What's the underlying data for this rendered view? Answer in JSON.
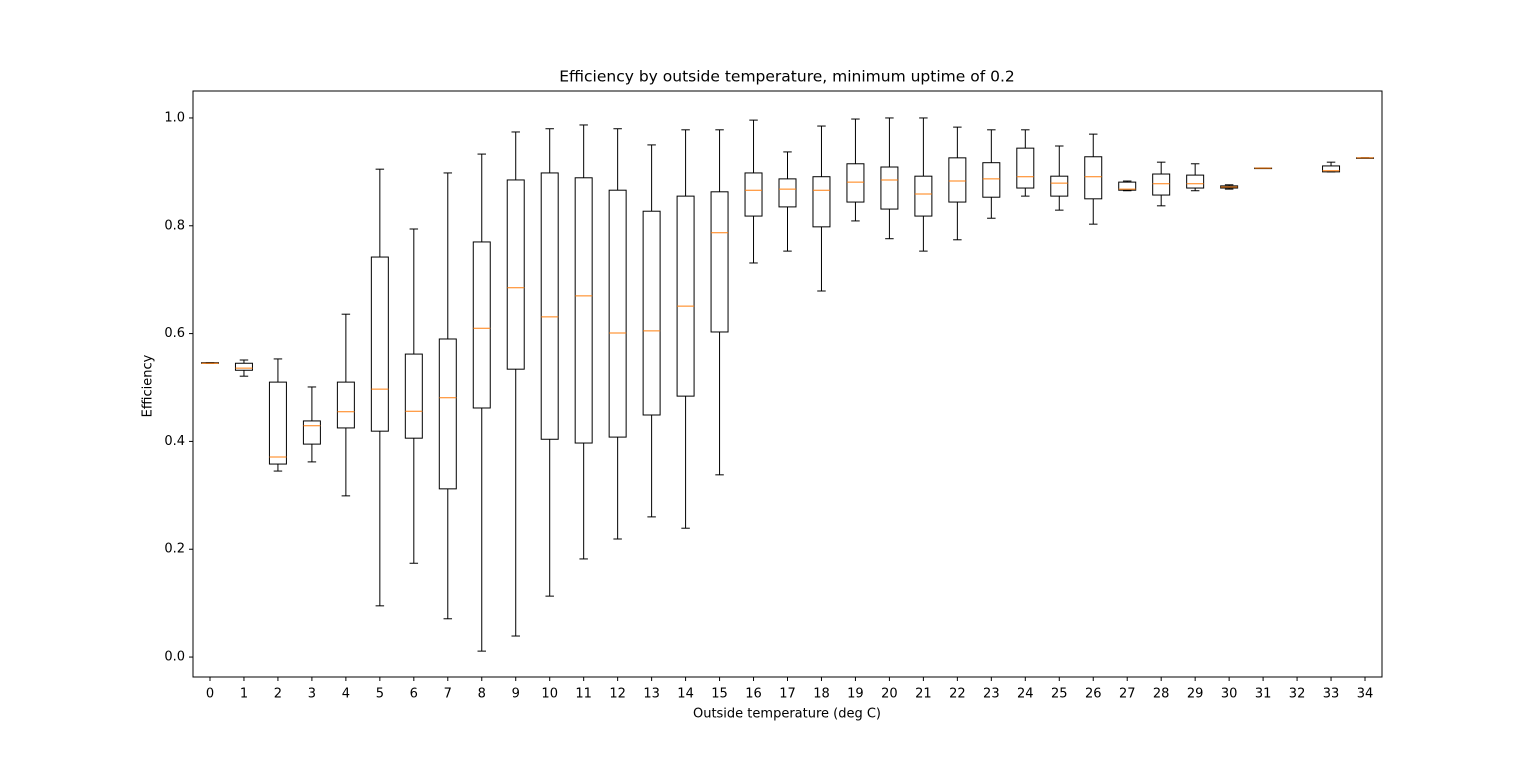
{
  "chart_data": {
    "type": "box",
    "title": "Efficiency by outside temperature, minimum uptime of 0.2",
    "x_label": "Outside temperature (deg C)",
    "y_label": "Efficiency",
    "categories": [
      "0",
      "1",
      "2",
      "3",
      "4",
      "5",
      "6",
      "7",
      "8",
      "9",
      "10",
      "11",
      "12",
      "13",
      "14",
      "15",
      "16",
      "17",
      "18",
      "19",
      "20",
      "21",
      "22",
      "23",
      "24",
      "25",
      "26",
      "27",
      "28",
      "29",
      "30",
      "31",
      "32",
      "33",
      "34"
    ],
    "whislo": [
      0.545,
      0.521,
      0.345,
      0.362,
      0.299,
      0.095,
      0.174,
      0.071,
      0.011,
      0.039,
      0.113,
      0.182,
      0.219,
      0.26,
      0.239,
      0.338,
      0.731,
      0.753,
      0.679,
      0.809,
      0.776,
      0.753,
      0.774,
      0.814,
      0.855,
      0.829,
      0.803,
      0.865,
      0.837,
      0.865,
      0.868,
      0.907,
      null,
      0.9,
      0.926
    ],
    "q1": [
      0.545,
      0.532,
      0.358,
      0.395,
      0.425,
      0.419,
      0.406,
      0.312,
      0.462,
      0.534,
      0.404,
      0.397,
      0.408,
      0.449,
      0.484,
      0.603,
      0.818,
      0.835,
      0.798,
      0.844,
      0.831,
      0.818,
      0.844,
      0.853,
      0.87,
      0.855,
      0.85,
      0.866,
      0.857,
      0.87,
      0.87,
      0.907,
      null,
      0.9,
      0.926
    ],
    "median": [
      0.545,
      0.536,
      0.371,
      0.429,
      0.455,
      0.497,
      0.456,
      0.481,
      0.61,
      0.685,
      0.631,
      0.67,
      0.601,
      0.605,
      0.651,
      0.787,
      0.866,
      0.868,
      0.866,
      0.881,
      0.885,
      0.859,
      0.883,
      0.887,
      0.891,
      0.879,
      0.891,
      0.868,
      0.878,
      0.878,
      0.872,
      0.907,
      null,
      0.902,
      0.926
    ],
    "q3": [
      0.546,
      0.545,
      0.51,
      0.438,
      0.51,
      0.742,
      0.562,
      0.59,
      0.77,
      0.885,
      0.898,
      0.889,
      0.866,
      0.827,
      0.855,
      0.863,
      0.898,
      0.887,
      0.891,
      0.915,
      0.909,
      0.892,
      0.926,
      0.917,
      0.944,
      0.892,
      0.928,
      0.881,
      0.896,
      0.894,
      0.874,
      0.907,
      null,
      0.911,
      0.926
    ],
    "whishi": [
      0.546,
      0.551,
      0.553,
      0.501,
      0.636,
      0.905,
      0.794,
      0.898,
      0.933,
      0.974,
      0.98,
      0.987,
      0.98,
      0.95,
      0.978,
      0.978,
      0.996,
      0.937,
      0.985,
      0.998,
      1.0,
      1.0,
      0.983,
      0.978,
      0.978,
      0.948,
      0.97,
      0.883,
      0.918,
      0.915,
      0.876,
      0.907,
      null,
      0.918,
      0.926
    ],
    "box_color": "#000000",
    "median_color": "#ff7f0e",
    "ylim": [
      -0.037,
      1.05
    ],
    "yticks": [
      {
        "value": 0,
        "label": "0.0"
      },
      0.2,
      0.4,
      0.6,
      0.8,
      {
        "value": 1,
        "label": "1.0"
      }
    ]
  }
}
